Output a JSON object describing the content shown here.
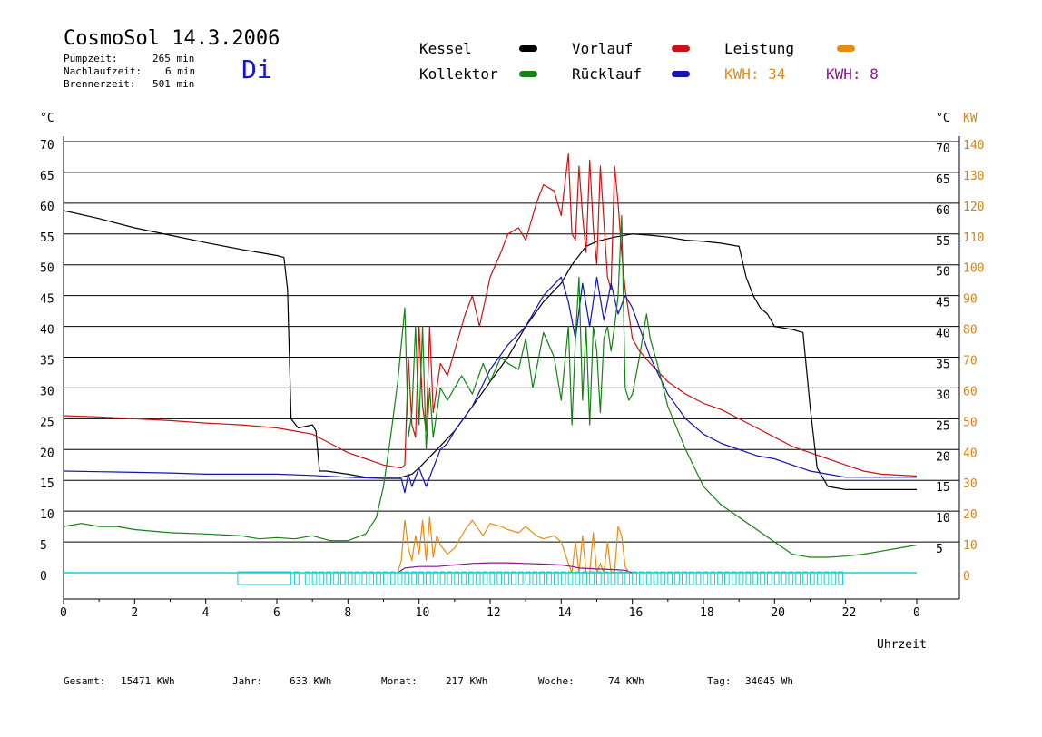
{
  "header": {
    "title": "CosmoSol 14.3.2006",
    "day": "Di",
    "pumpzeit_label": "Pumpzeit:",
    "pumpzeit_value": "265 min",
    "nachlaufzeit_label": "Nachlaufzeit:",
    "nachlaufzeit_value": "6 min",
    "brennerzeit_label": "Brennerzeit:",
    "brennerzeit_value": "501 min"
  },
  "legend": {
    "kessel": "Kessel",
    "kollektor": "Kollektor",
    "vorlauf": "Vorlauf",
    "ruecklauf": "Rücklauf",
    "leistung": "Leistung",
    "kwh1": "KWH: 34",
    "kwh2": "KWH: 8"
  },
  "footer": {
    "gesamt_label": "Gesamt:",
    "gesamt_value": "15471 KWh",
    "jahr_label": "Jahr:",
    "jahr_value": "633 KWh",
    "monat_label": "Monat:",
    "monat_value": "217 KWh",
    "woche_label": "Woche:",
    "woche_value": "74 KWh",
    "tag_label": "Tag:",
    "tag_value": "34045 Wh"
  },
  "colors": {
    "kessel": "#000000",
    "kollektor": "#148214",
    "vorlauf": "#c81414",
    "ruecklauf": "#1414b4",
    "leistung": "#e68c14",
    "kwh2": "#8c148c",
    "pump": "#14d2d2",
    "orange_axis": "#d2841e"
  },
  "chart_data": {
    "type": "line",
    "xlabel": "Uhrzeit",
    "ylabel_left": "°C",
    "ylabel_right": [
      "°C",
      "KW"
    ],
    "xlim": [
      0,
      24
    ],
    "ylim": [
      0,
      72
    ],
    "y2lim": [
      0,
      144
    ],
    "x_ticks": [
      "0",
      "2",
      "4",
      "6",
      "8",
      "10",
      "12",
      "14",
      "16",
      "18",
      "20",
      "22",
      "0"
    ],
    "y_ticks_left": [
      "0",
      "5",
      "10",
      "15",
      "20",
      "25",
      "30",
      "35",
      "40",
      "45",
      "50",
      "55",
      "60",
      "65",
      "70"
    ],
    "y_ticks_right": [
      "5",
      "10",
      "15",
      "20",
      "25",
      "30",
      "35",
      "40",
      "45",
      "50",
      "55",
      "60",
      "65",
      "70"
    ],
    "y_ticks_right2": [
      "0",
      "10",
      "20",
      "30",
      "40",
      "50",
      "60",
      "70",
      "80",
      "90",
      "100",
      "110",
      "120",
      "130",
      "140"
    ],
    "grid": true,
    "series": [
      {
        "name": "Kessel",
        "color": "#000000",
        "x": [
          0,
          1,
          2,
          3,
          4,
          5,
          5.5,
          6,
          6.2,
          6.3,
          6.4,
          6.6,
          7,
          7.1,
          7.2,
          7.4,
          8,
          8.5,
          9,
          9.5,
          9.8,
          10,
          10.5,
          11,
          11.5,
          12,
          12.5,
          13,
          13.5,
          14,
          14.3,
          14.7,
          15,
          15.5,
          16,
          16.5,
          17,
          17.5,
          18,
          18.5,
          19,
          19.2,
          19.4,
          19.6,
          19.8,
          20,
          20.5,
          20.8,
          21,
          21.2,
          21.5,
          22,
          23,
          24
        ],
        "y": [
          58.8,
          57.5,
          56,
          54.8,
          53.6,
          52.5,
          52,
          51.5,
          51.2,
          46,
          25,
          23.5,
          24,
          23,
          16.5,
          16.5,
          16,
          15.5,
          15.5,
          15.5,
          16,
          17,
          20,
          23,
          27,
          31,
          35,
          40,
          44,
          47,
          50,
          53,
          53.8,
          54.5,
          55,
          54.8,
          54.5,
          54,
          53.8,
          53.5,
          53,
          48,
          45,
          43,
          42,
          40,
          39.5,
          39,
          27,
          17,
          14,
          13.5,
          13.5,
          13.5
        ]
      },
      {
        "name": "Vorlauf",
        "color": "#c81414",
        "x": [
          0,
          1,
          2,
          3,
          4,
          5,
          6,
          6.5,
          7,
          7.5,
          8,
          8.5,
          9,
          9.5,
          9.6,
          9.7,
          9.8,
          9.9,
          10,
          10.1,
          10.2,
          10.3,
          10.4,
          10.5,
          10.6,
          10.8,
          11,
          11.3,
          11.5,
          11.7,
          12,
          12.3,
          12.5,
          12.8,
          13,
          13.3,
          13.5,
          13.8,
          14,
          14.2,
          14.3,
          14.4,
          14.5,
          14.6,
          14.7,
          14.8,
          14.9,
          15,
          15.1,
          15.2,
          15.3,
          15.4,
          15.5,
          15.6,
          15.7,
          15.8,
          15.9,
          16,
          16.2,
          16.5,
          17,
          17.5,
          18,
          18.5,
          19,
          19.5,
          20,
          20.5,
          21,
          21.5,
          22,
          22.5,
          23,
          24
        ],
        "y": [
          25.5,
          25.3,
          25,
          24.7,
          24.3,
          24,
          23.5,
          23,
          22.5,
          21,
          19.5,
          18.5,
          17.5,
          17,
          17.5,
          35,
          24,
          22,
          40,
          27,
          23,
          40,
          26,
          30,
          34,
          32,
          36,
          42,
          45,
          40,
          48,
          52,
          55,
          56,
          54,
          60,
          63,
          62,
          58,
          68,
          55,
          54,
          66,
          58,
          52,
          67,
          56,
          50,
          66,
          57,
          48,
          46,
          66,
          60,
          52,
          46,
          42,
          38,
          36,
          34,
          31,
          29,
          27.5,
          26.5,
          25,
          23.5,
          22,
          20.5,
          19.5,
          18.5,
          17.5,
          16.5,
          16,
          15.7
        ]
      },
      {
        "name": "Rücklauf",
        "color": "#1414b4",
        "x": [
          0,
          1,
          2,
          3,
          4,
          5,
          6,
          7,
          8,
          9,
          9.5,
          9.6,
          9.7,
          9.8,
          10,
          10.2,
          10.4,
          10.6,
          10.8,
          11,
          11.5,
          12,
          12.5,
          13,
          13.5,
          14,
          14.2,
          14.4,
          14.6,
          14.8,
          15,
          15.2,
          15.4,
          15.6,
          15.8,
          16,
          16.5,
          17,
          17.5,
          18,
          18.5,
          19,
          19.5,
          20,
          20.5,
          21,
          21.5,
          22,
          22.5,
          23,
          24
        ],
        "y": [
          16.5,
          16.4,
          16.3,
          16.2,
          16,
          16,
          16,
          15.8,
          15.5,
          15.3,
          15.3,
          13,
          16,
          14,
          17,
          14,
          17,
          20,
          21,
          23,
          27,
          33,
          37,
          40,
          45,
          48,
          44,
          38,
          47,
          40,
          48,
          41,
          47,
          42,
          45,
          43,
          35,
          29,
          25,
          22.5,
          21,
          20,
          19,
          18.5,
          17.5,
          16.5,
          16,
          15.5,
          15.5,
          15.5,
          15.5
        ]
      },
      {
        "name": "Kollektor",
        "color": "#148214",
        "x": [
          0,
          0.5,
          1,
          1.5,
          2,
          3,
          4,
          5,
          5.5,
          6,
          6.5,
          7,
          7.5,
          8,
          8.5,
          8.8,
          9,
          9.2,
          9.4,
          9.6,
          9.7,
          9.8,
          9.9,
          10,
          10.1,
          10.2,
          10.3,
          10.4,
          10.5,
          10.6,
          10.8,
          11,
          11.2,
          11.5,
          11.8,
          12,
          12.3,
          12.5,
          12.8,
          13,
          13.2,
          13.5,
          13.8,
          14,
          14.2,
          14.3,
          14.4,
          14.5,
          14.6,
          14.7,
          14.8,
          14.9,
          15,
          15.1,
          15.2,
          15.3,
          15.4,
          15.5,
          15.6,
          15.7,
          15.8,
          15.9,
          16,
          16.2,
          16.4,
          16.5,
          16.7,
          17,
          17.5,
          18,
          18.5,
          19,
          19.5,
          20,
          20.5,
          21,
          21.5,
          22,
          22.5,
          23,
          23.5,
          24
        ],
        "y": [
          7.5,
          8,
          7.5,
          7.5,
          7,
          6.5,
          6.3,
          6,
          5.5,
          5.7,
          5.5,
          6,
          5.2,
          5.2,
          6.3,
          9,
          14,
          22,
          31,
          43,
          22,
          26,
          40,
          24,
          40,
          20,
          30,
          22,
          26,
          30,
          28,
          30,
          32,
          29,
          34,
          31,
          35,
          34,
          33,
          38,
          30,
          39,
          35,
          28,
          40,
          24,
          38,
          48,
          28,
          40,
          24,
          40,
          36,
          26,
          38,
          40,
          36,
          40,
          45,
          58,
          30,
          28,
          29,
          35,
          42,
          38,
          34,
          27,
          20,
          14,
          11,
          9,
          7,
          5,
          3,
          2.5,
          2.5,
          2.7,
          3,
          3.5,
          4,
          4.5
        ]
      },
      {
        "name": "Leistung",
        "color": "#e68c14",
        "axis": "right",
        "x": [
          9.4,
          9.5,
          9.6,
          9.7,
          9.8,
          9.9,
          10,
          10.1,
          10.2,
          10.3,
          10.4,
          10.5,
          10.6,
          10.8,
          11,
          11.3,
          11.5,
          11.8,
          12,
          12.3,
          12.5,
          12.8,
          13,
          13.3,
          13.5,
          13.8,
          14,
          14.2,
          14.3,
          14.4,
          14.5,
          14.6,
          14.7,
          14.8,
          14.9,
          15,
          15.1,
          15.2,
          15.3,
          15.4,
          15.5,
          15.6,
          15.7,
          15.8,
          15.9,
          16
        ],
        "y": [
          0,
          4,
          17,
          8,
          4,
          12,
          6,
          17,
          4,
          18,
          5,
          12,
          9,
          6,
          8,
          14,
          17,
          12,
          16,
          15,
          14,
          13,
          15,
          12,
          11,
          12,
          10,
          3,
          0,
          10,
          0,
          12,
          0,
          0,
          13,
          0,
          3,
          0,
          10,
          0,
          0,
          15,
          12,
          2,
          0,
          0
        ]
      },
      {
        "name": "KWH 8",
        "color": "#8c148c",
        "axis": "right",
        "x": [
          9.4,
          9.6,
          10,
          10.5,
          11,
          11.5,
          12,
          12.5,
          13,
          13.5,
          14,
          14.3,
          14.5,
          15,
          15.5,
          15.8,
          16
        ],
        "y": [
          0,
          1.5,
          2,
          2,
          2.5,
          3,
          3.2,
          3.2,
          3,
          2.8,
          2.5,
          2,
          1.5,
          1.2,
          1,
          0.8,
          0
        ]
      },
      {
        "name": "Pumpe",
        "color": "#14d2d2",
        "kind": "pump",
        "x": [
          4.9,
          5.3,
          5.7,
          6.1,
          6.3,
          6.5,
          6.8,
          7,
          7.2,
          7.4,
          7.6,
          7.8,
          8,
          8.2,
          8.4,
          8.6,
          8.8,
          9,
          9.2,
          9.4,
          9.6,
          9.8,
          10,
          10.2,
          10.4,
          10.6,
          10.8,
          11,
          11.2,
          11.4,
          11.6,
          11.8,
          12,
          12.2,
          12.4,
          12.6,
          12.8,
          13,
          13.2,
          13.4,
          13.6,
          13.8,
          14,
          14.2,
          14.4,
          14.6,
          14.8,
          15,
          15.2,
          15.4,
          15.6,
          15.8,
          16,
          16.2,
          16.4,
          16.6,
          16.8,
          17,
          17.2,
          17.4,
          17.6,
          17.8,
          18,
          18.2,
          18.4,
          18.6,
          18.8,
          19,
          19.2,
          19.4,
          19.6,
          19.8,
          20,
          20.2,
          20.4,
          20.6,
          20.8,
          21,
          21.2,
          21.4,
          21.6,
          21.8,
          22
        ],
        "y": [
          1,
          1,
          1,
          1,
          1,
          1,
          1,
          1,
          1,
          1,
          1,
          1,
          1,
          1,
          1,
          1,
          1,
          1,
          1,
          1,
          1,
          1,
          1,
          1,
          1,
          1,
          1,
          1,
          1,
          1,
          1,
          1,
          1,
          1,
          1,
          1,
          1,
          1,
          1,
          1,
          1,
          1,
          1,
          1,
          1,
          1,
          1,
          1,
          1,
          1,
          1,
          1,
          1,
          1,
          1,
          1,
          1,
          1,
          1,
          1,
          1,
          1,
          1,
          1,
          1,
          1,
          1,
          1,
          1,
          1,
          1,
          1,
          1,
          1,
          1,
          1,
          1,
          1,
          1,
          1,
          1,
          1,
          1
        ]
      }
    ]
  }
}
